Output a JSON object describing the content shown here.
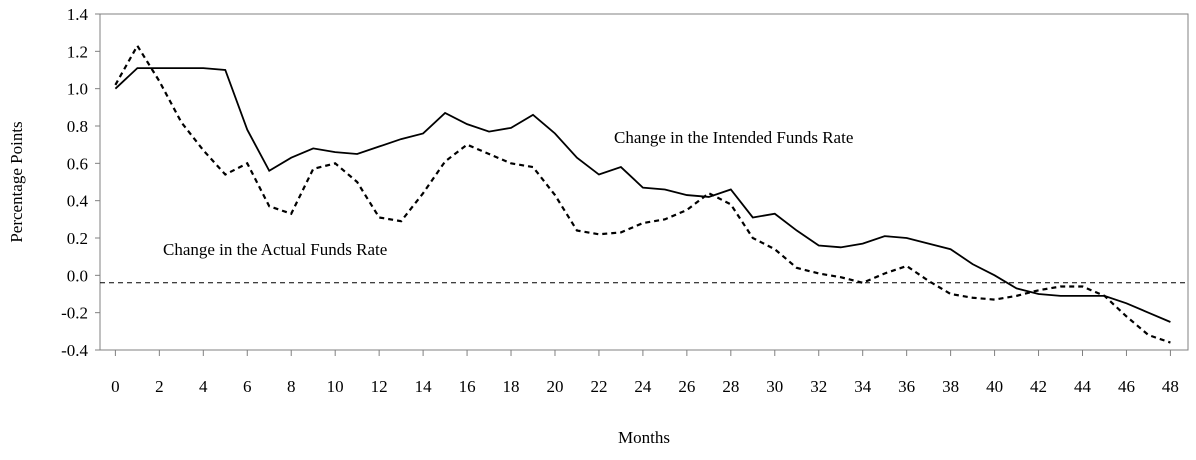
{
  "chart_data": {
    "type": "line",
    "x_label": "Months",
    "y_label": "Percentage Points",
    "x": [
      0,
      1,
      2,
      3,
      4,
      5,
      6,
      7,
      8,
      9,
      10,
      11,
      12,
      13,
      14,
      15,
      16,
      17,
      18,
      19,
      20,
      21,
      22,
      23,
      24,
      25,
      26,
      27,
      28,
      29,
      30,
      31,
      32,
      33,
      34,
      35,
      36,
      37,
      38,
      39,
      40,
      41,
      42,
      43,
      44,
      45,
      46,
      47,
      48
    ],
    "series": [
      {
        "color": "#000000",
        "style": "solid",
        "values": [
          1.0,
          1.11,
          1.11,
          1.11,
          1.11,
          1.1,
          0.78,
          0.56,
          0.63,
          0.68,
          0.66,
          0.65,
          0.69,
          0.73,
          0.76,
          0.87,
          0.81,
          0.77,
          0.79,
          0.86,
          0.76,
          0.63,
          0.54,
          0.58,
          0.47,
          0.46,
          0.43,
          0.42,
          0.46,
          0.31,
          0.33,
          0.24,
          0.16,
          0.15,
          0.17,
          0.21,
          0.2,
          0.17,
          0.14,
          0.06,
          0.0,
          -0.07,
          -0.1,
          -0.11,
          -0.11,
          -0.11,
          -0.15,
          -0.2,
          -0.25
        ]
      },
      {
        "color": "#000000",
        "style": "dashed",
        "values": [
          1.02,
          1.23,
          1.04,
          0.82,
          0.67,
          0.54,
          0.6,
          0.37,
          0.33,
          0.57,
          0.6,
          0.5,
          0.31,
          0.29,
          0.44,
          0.61,
          0.7,
          0.65,
          0.6,
          0.58,
          0.43,
          0.24,
          0.22,
          0.23,
          0.28,
          0.3,
          0.35,
          0.44,
          0.38,
          0.2,
          0.14,
          0.04,
          0.01,
          -0.01,
          -0.04,
          0.01,
          0.05,
          -0.03,
          -0.1,
          -0.12,
          -0.13,
          -0.11,
          -0.08,
          -0.06,
          -0.06,
          -0.11,
          -0.22,
          -0.32,
          -0.36
        ]
      }
    ],
    "annotations": [
      "Change in the Intended Funds Rate",
      "Change in the Actual Funds Rate"
    ],
    "reference_line": {
      "value": -0.04,
      "style": "dashed"
    },
    "xlim": [
      -0.7,
      48.8
    ],
    "xticks": [
      0,
      2,
      4,
      6,
      8,
      10,
      12,
      14,
      16,
      18,
      20,
      22,
      24,
      26,
      28,
      30,
      32,
      34,
      36,
      38,
      40,
      42,
      44,
      46,
      48
    ],
    "ylim": [
      -0.4,
      1.4
    ],
    "yticks": [
      -0.4,
      -0.2,
      {
        "value": 0,
        "label": "0.0"
      },
      0.2,
      0.4,
      0.6,
      0.8,
      {
        "value": 1,
        "label": "1.0"
      },
      1.2,
      1.4
    ],
    "grid": false
  }
}
